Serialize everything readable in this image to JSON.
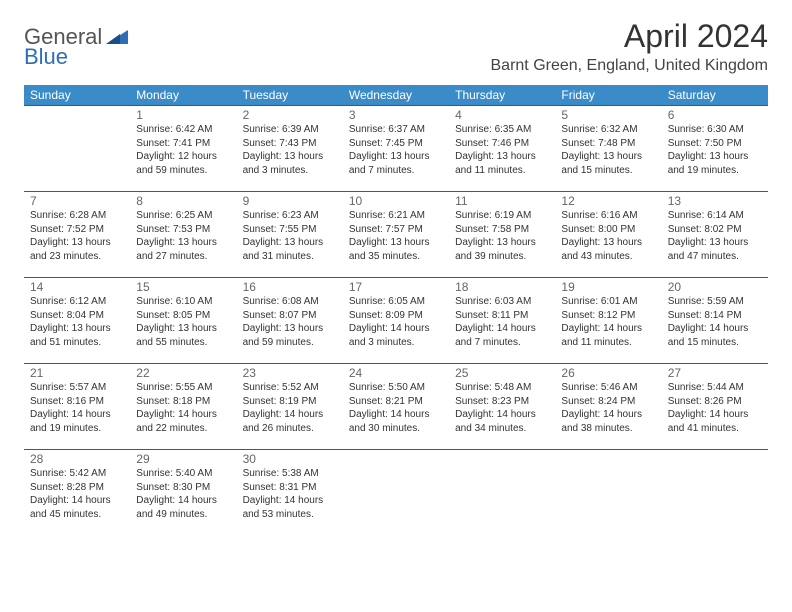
{
  "brand": {
    "part1": "General",
    "part2": "Blue"
  },
  "title": "April 2024",
  "location": "Barnt Green, England, United Kingdom",
  "colors": {
    "header_bg": "#3b8bc9",
    "header_text": "#ffffff",
    "border": "#2d5b8a",
    "brand_blue": "#2d6fb5"
  },
  "day_headers": [
    "Sunday",
    "Monday",
    "Tuesday",
    "Wednesday",
    "Thursday",
    "Friday",
    "Saturday"
  ],
  "weeks": [
    [
      null,
      {
        "n": "1",
        "sr": "Sunrise: 6:42 AM",
        "ss": "Sunset: 7:41 PM",
        "d1": "Daylight: 12 hours",
        "d2": "and 59 minutes."
      },
      {
        "n": "2",
        "sr": "Sunrise: 6:39 AM",
        "ss": "Sunset: 7:43 PM",
        "d1": "Daylight: 13 hours",
        "d2": "and 3 minutes."
      },
      {
        "n": "3",
        "sr": "Sunrise: 6:37 AM",
        "ss": "Sunset: 7:45 PM",
        "d1": "Daylight: 13 hours",
        "d2": "and 7 minutes."
      },
      {
        "n": "4",
        "sr": "Sunrise: 6:35 AM",
        "ss": "Sunset: 7:46 PM",
        "d1": "Daylight: 13 hours",
        "d2": "and 11 minutes."
      },
      {
        "n": "5",
        "sr": "Sunrise: 6:32 AM",
        "ss": "Sunset: 7:48 PM",
        "d1": "Daylight: 13 hours",
        "d2": "and 15 minutes."
      },
      {
        "n": "6",
        "sr": "Sunrise: 6:30 AM",
        "ss": "Sunset: 7:50 PM",
        "d1": "Daylight: 13 hours",
        "d2": "and 19 minutes."
      }
    ],
    [
      {
        "n": "7",
        "sr": "Sunrise: 6:28 AM",
        "ss": "Sunset: 7:52 PM",
        "d1": "Daylight: 13 hours",
        "d2": "and 23 minutes."
      },
      {
        "n": "8",
        "sr": "Sunrise: 6:25 AM",
        "ss": "Sunset: 7:53 PM",
        "d1": "Daylight: 13 hours",
        "d2": "and 27 minutes."
      },
      {
        "n": "9",
        "sr": "Sunrise: 6:23 AM",
        "ss": "Sunset: 7:55 PM",
        "d1": "Daylight: 13 hours",
        "d2": "and 31 minutes."
      },
      {
        "n": "10",
        "sr": "Sunrise: 6:21 AM",
        "ss": "Sunset: 7:57 PM",
        "d1": "Daylight: 13 hours",
        "d2": "and 35 minutes."
      },
      {
        "n": "11",
        "sr": "Sunrise: 6:19 AM",
        "ss": "Sunset: 7:58 PM",
        "d1": "Daylight: 13 hours",
        "d2": "and 39 minutes."
      },
      {
        "n": "12",
        "sr": "Sunrise: 6:16 AM",
        "ss": "Sunset: 8:00 PM",
        "d1": "Daylight: 13 hours",
        "d2": "and 43 minutes."
      },
      {
        "n": "13",
        "sr": "Sunrise: 6:14 AM",
        "ss": "Sunset: 8:02 PM",
        "d1": "Daylight: 13 hours",
        "d2": "and 47 minutes."
      }
    ],
    [
      {
        "n": "14",
        "sr": "Sunrise: 6:12 AM",
        "ss": "Sunset: 8:04 PM",
        "d1": "Daylight: 13 hours",
        "d2": "and 51 minutes."
      },
      {
        "n": "15",
        "sr": "Sunrise: 6:10 AM",
        "ss": "Sunset: 8:05 PM",
        "d1": "Daylight: 13 hours",
        "d2": "and 55 minutes."
      },
      {
        "n": "16",
        "sr": "Sunrise: 6:08 AM",
        "ss": "Sunset: 8:07 PM",
        "d1": "Daylight: 13 hours",
        "d2": "and 59 minutes."
      },
      {
        "n": "17",
        "sr": "Sunrise: 6:05 AM",
        "ss": "Sunset: 8:09 PM",
        "d1": "Daylight: 14 hours",
        "d2": "and 3 minutes."
      },
      {
        "n": "18",
        "sr": "Sunrise: 6:03 AM",
        "ss": "Sunset: 8:11 PM",
        "d1": "Daylight: 14 hours",
        "d2": "and 7 minutes."
      },
      {
        "n": "19",
        "sr": "Sunrise: 6:01 AM",
        "ss": "Sunset: 8:12 PM",
        "d1": "Daylight: 14 hours",
        "d2": "and 11 minutes."
      },
      {
        "n": "20",
        "sr": "Sunrise: 5:59 AM",
        "ss": "Sunset: 8:14 PM",
        "d1": "Daylight: 14 hours",
        "d2": "and 15 minutes."
      }
    ],
    [
      {
        "n": "21",
        "sr": "Sunrise: 5:57 AM",
        "ss": "Sunset: 8:16 PM",
        "d1": "Daylight: 14 hours",
        "d2": "and 19 minutes."
      },
      {
        "n": "22",
        "sr": "Sunrise: 5:55 AM",
        "ss": "Sunset: 8:18 PM",
        "d1": "Daylight: 14 hours",
        "d2": "and 22 minutes."
      },
      {
        "n": "23",
        "sr": "Sunrise: 5:52 AM",
        "ss": "Sunset: 8:19 PM",
        "d1": "Daylight: 14 hours",
        "d2": "and 26 minutes."
      },
      {
        "n": "24",
        "sr": "Sunrise: 5:50 AM",
        "ss": "Sunset: 8:21 PM",
        "d1": "Daylight: 14 hours",
        "d2": "and 30 minutes."
      },
      {
        "n": "25",
        "sr": "Sunrise: 5:48 AM",
        "ss": "Sunset: 8:23 PM",
        "d1": "Daylight: 14 hours",
        "d2": "and 34 minutes."
      },
      {
        "n": "26",
        "sr": "Sunrise: 5:46 AM",
        "ss": "Sunset: 8:24 PM",
        "d1": "Daylight: 14 hours",
        "d2": "and 38 minutes."
      },
      {
        "n": "27",
        "sr": "Sunrise: 5:44 AM",
        "ss": "Sunset: 8:26 PM",
        "d1": "Daylight: 14 hours",
        "d2": "and 41 minutes."
      }
    ],
    [
      {
        "n": "28",
        "sr": "Sunrise: 5:42 AM",
        "ss": "Sunset: 8:28 PM",
        "d1": "Daylight: 14 hours",
        "d2": "and 45 minutes."
      },
      {
        "n": "29",
        "sr": "Sunrise: 5:40 AM",
        "ss": "Sunset: 8:30 PM",
        "d1": "Daylight: 14 hours",
        "d2": "and 49 minutes."
      },
      {
        "n": "30",
        "sr": "Sunrise: 5:38 AM",
        "ss": "Sunset: 8:31 PM",
        "d1": "Daylight: 14 hours",
        "d2": "and 53 minutes."
      },
      null,
      null,
      null,
      null
    ]
  ]
}
